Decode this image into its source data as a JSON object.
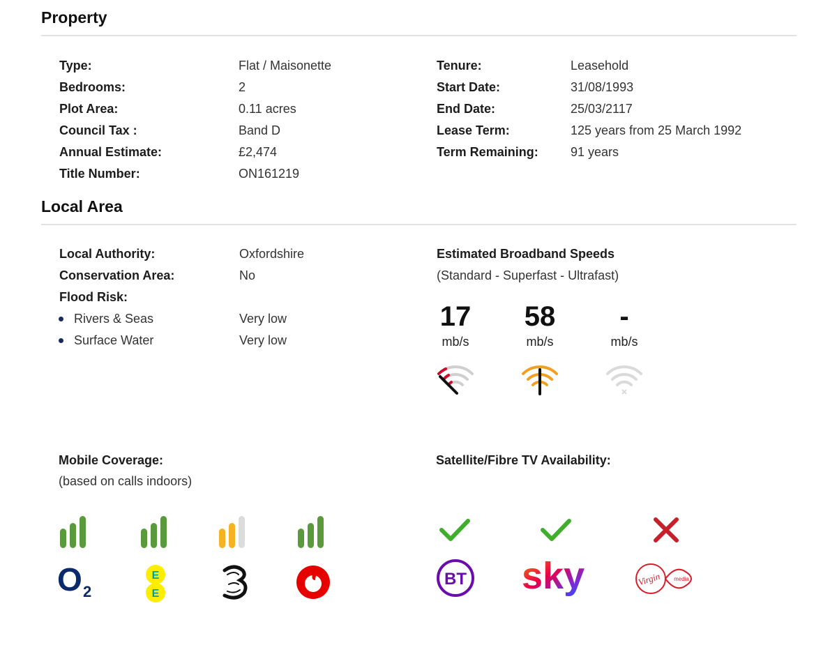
{
  "property": {
    "title": "Property",
    "left": [
      {
        "label": "Type:",
        "value": "Flat / Maisonette"
      },
      {
        "label": "Bedrooms:",
        "value": "2"
      },
      {
        "label": "Plot Area:",
        "value": "0.11 acres"
      },
      {
        "label": "Council Tax :",
        "value": "Band D"
      },
      {
        "label": "Annual Estimate:",
        "value": "£2,474"
      },
      {
        "label": "Title Number:",
        "value": "ON161219"
      }
    ],
    "right": [
      {
        "label": "Tenure:",
        "value": "Leasehold"
      },
      {
        "label": "Start Date:",
        "value": "31/08/1993"
      },
      {
        "label": "End Date:",
        "value": "25/03/2117"
      },
      {
        "label": "Lease Term:",
        "value": "125 years from 25 March 1992"
      },
      {
        "label": "Term Remaining:",
        "value": "91 years"
      }
    ]
  },
  "local_area": {
    "title": "Local Area",
    "local_authority": {
      "label": "Local Authority:",
      "value": "Oxfordshire"
    },
    "conservation_area": {
      "label": "Conservation Area:",
      "value": "No"
    },
    "flood_risk": {
      "label": "Flood Risk:",
      "items": [
        {
          "label": "Rivers & Seas",
          "value": "Very low"
        },
        {
          "label": "Surface Water",
          "value": "Very low"
        }
      ]
    },
    "broadband": {
      "title": "Estimated Broadband Speeds",
      "subtitle": "(Standard - Superfast - Ultrafast)",
      "speeds": [
        {
          "value": "17",
          "unit": "mb/s",
          "gauge_icon": "wifi-gauge-low-icon",
          "color": "#c8102e"
        },
        {
          "value": "58",
          "unit": "mb/s",
          "gauge_icon": "wifi-gauge-medium-icon",
          "color": "#f0a020"
        },
        {
          "value": "-",
          "unit": "mb/s",
          "gauge_icon": "wifi-unavailable-icon",
          "color": "#d8d8d8"
        }
      ]
    },
    "mobile": {
      "title": "Mobile Coverage:",
      "subtitle": "(based on calls indoors)",
      "operators": [
        {
          "icon": "o2-logo",
          "logo_text": "O2",
          "bars_filled": 3,
          "color": "#5a9a3c"
        },
        {
          "icon": "ee-logo",
          "logo_text": "EE",
          "bars_filled": 3,
          "color": "#5a9a3c"
        },
        {
          "icon": "three-logo",
          "logo_text": "3",
          "bars_filled": 2,
          "color": "#f5b324"
        },
        {
          "icon": "vodafone-logo",
          "logo_text": "",
          "bars_filled": 3,
          "color": "#5a9a3c"
        }
      ]
    },
    "tv": {
      "title": "Satellite/Fibre TV Availability:",
      "providers": [
        {
          "icon": "bt-logo",
          "logo_text": "BT",
          "available": true,
          "status_icon": "check-icon"
        },
        {
          "icon": "sky-logo",
          "logo_text": "sky",
          "available": true,
          "status_icon": "check-icon"
        },
        {
          "icon": "virgin-media-logo",
          "logo_text": "Virgin media",
          "available": false,
          "status_icon": "cross-icon"
        }
      ]
    }
  }
}
